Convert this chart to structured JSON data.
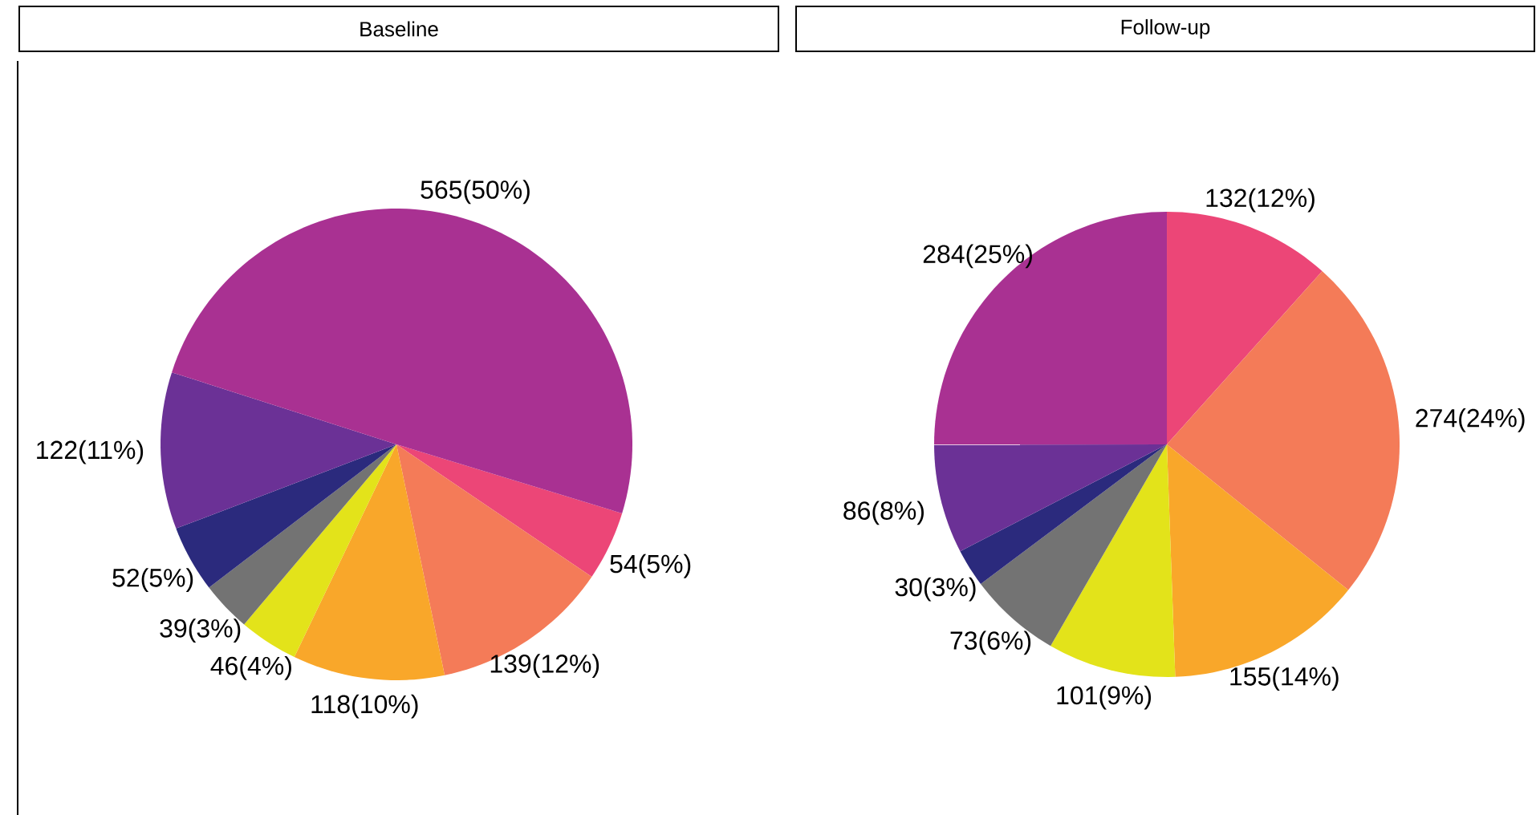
{
  "chart_data": [
    {
      "type": "pie",
      "title": "Baseline",
      "categories": [
        null,
        null,
        null,
        null,
        null,
        null,
        null,
        null
      ],
      "values": [
        54,
        139,
        118,
        46,
        39,
        52,
        122,
        565
      ],
      "colors": [
        "#ec4677",
        "#f47b58",
        "#f9a72a",
        "#e3e31a",
        "#737373",
        "#2b2a7d",
        "#6b3196",
        "#a93192"
      ],
      "value_labels": [
        "54(5%)",
        "139(12%)",
        "118(10%)",
        "46(4%)",
        "39(3%)",
        "52(5%)",
        "122(11%)",
        "565(50%)"
      ]
    },
    {
      "type": "pie",
      "title": "Follow-up",
      "categories": [
        null,
        null,
        null,
        null,
        null,
        null,
        null,
        null
      ],
      "values": [
        132,
        274,
        155,
        101,
        73,
        30,
        86,
        284
      ],
      "colors": [
        "#ec4677",
        "#f47b58",
        "#f9a72a",
        "#e3e31a",
        "#737373",
        "#2b2a7d",
        "#6b3196",
        "#a93192"
      ],
      "value_labels": [
        "132(12%)",
        "274(24%)",
        "155(14%)",
        "101(9%)",
        "73(6%)",
        "30(3%)",
        "86(8%)",
        "284(25%)"
      ]
    }
  ]
}
